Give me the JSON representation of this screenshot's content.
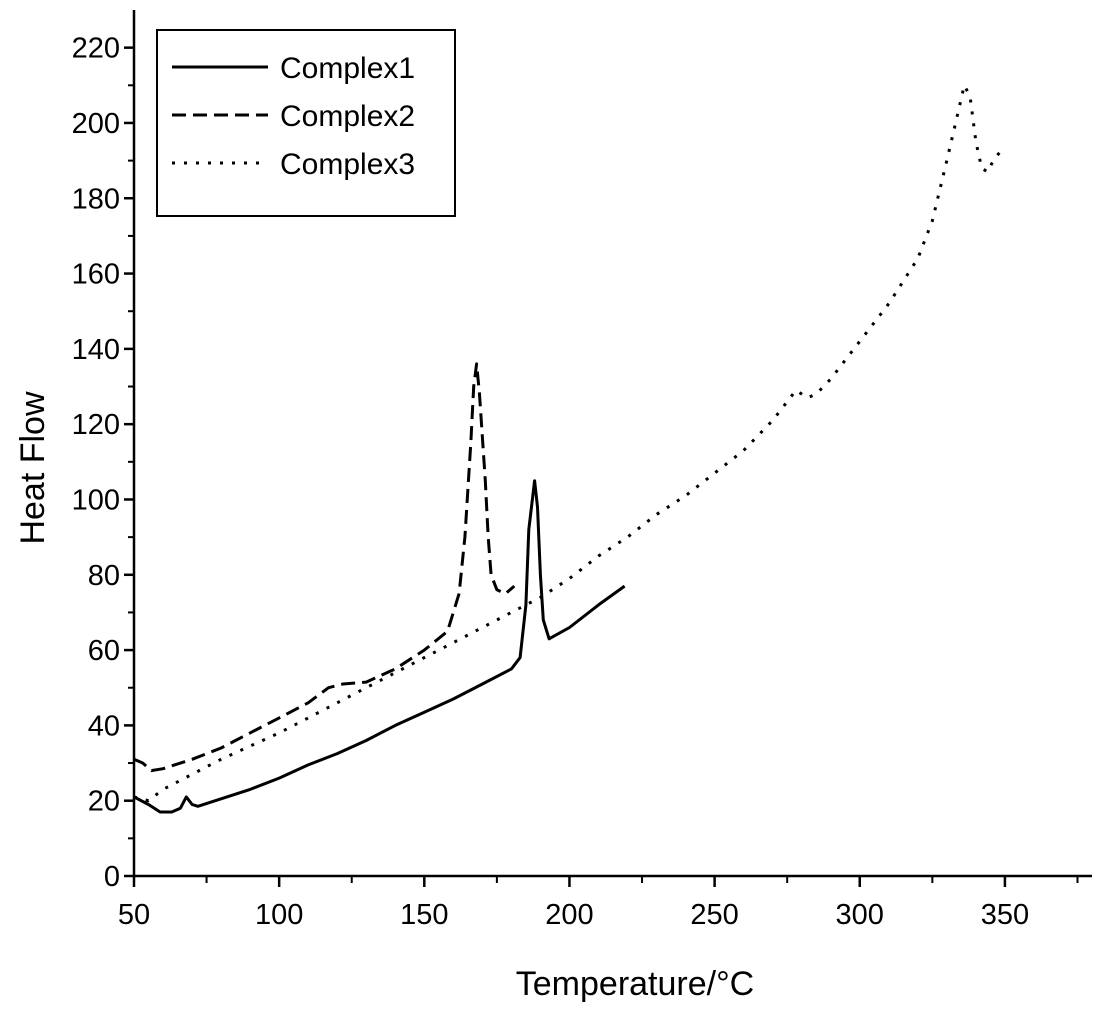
{
  "chart_data": {
    "type": "line",
    "title": "",
    "xlabel": "Temperature/°C",
    "ylabel": "Heat Flow",
    "xlim": [
      50,
      380
    ],
    "ylim": [
      0,
      230
    ],
    "x_ticks": [
      50,
      100,
      150,
      200,
      250,
      300,
      350
    ],
    "y_ticks": [
      0,
      20,
      40,
      60,
      80,
      100,
      120,
      140,
      160,
      180,
      200,
      220
    ],
    "grid": false,
    "legend_position": "top-left",
    "series": [
      {
        "name": "Complex1",
        "line_style": "solid",
        "color": "#000000",
        "points": [
          [
            50,
            21
          ],
          [
            55,
            19
          ],
          [
            59,
            17
          ],
          [
            63,
            17
          ],
          [
            66,
            18
          ],
          [
            68,
            21
          ],
          [
            70,
            19
          ],
          [
            72,
            18.5
          ],
          [
            80,
            20.5
          ],
          [
            90,
            23
          ],
          [
            100,
            26
          ],
          [
            110,
            29.5
          ],
          [
            120,
            32.5
          ],
          [
            130,
            36
          ],
          [
            140,
            40
          ],
          [
            150,
            43.5
          ],
          [
            160,
            47
          ],
          [
            170,
            51
          ],
          [
            180,
            55
          ],
          [
            183,
            58
          ],
          [
            185,
            72
          ],
          [
            186,
            92
          ],
          [
            188,
            105
          ],
          [
            189,
            98
          ],
          [
            190,
            80
          ],
          [
            191,
            68
          ],
          [
            193,
            63
          ],
          [
            200,
            66
          ],
          [
            210,
            72
          ],
          [
            219,
            77
          ]
        ]
      },
      {
        "name": "Complex2",
        "line_style": "dashed",
        "color": "#000000",
        "points": [
          [
            50,
            31
          ],
          [
            53,
            30
          ],
          [
            56,
            28
          ],
          [
            60,
            28.5
          ],
          [
            70,
            31
          ],
          [
            80,
            34
          ],
          [
            90,
            38
          ],
          [
            100,
            42
          ],
          [
            110,
            46
          ],
          [
            117,
            50
          ],
          [
            122,
            51
          ],
          [
            130,
            51.5
          ],
          [
            140,
            55
          ],
          [
            150,
            60
          ],
          [
            158,
            65
          ],
          [
            162,
            75
          ],
          [
            164,
            90
          ],
          [
            166,
            115
          ],
          [
            167,
            130
          ],
          [
            168,
            136
          ],
          [
            169,
            128
          ],
          [
            171,
            105
          ],
          [
            172,
            90
          ],
          [
            173,
            80
          ],
          [
            175,
            76
          ],
          [
            178,
            75
          ],
          [
            181,
            77
          ]
        ]
      },
      {
        "name": "Complex3",
        "line_style": "dotted",
        "color": "#000000",
        "points": [
          [
            50,
            21
          ],
          [
            55,
            20
          ],
          [
            60,
            23
          ],
          [
            70,
            27
          ],
          [
            80,
            31
          ],
          [
            90,
            34.5
          ],
          [
            100,
            38
          ],
          [
            110,
            42
          ],
          [
            120,
            46
          ],
          [
            130,
            50
          ],
          [
            140,
            54
          ],
          [
            150,
            58
          ],
          [
            160,
            62
          ],
          [
            170,
            66
          ],
          [
            180,
            70
          ],
          [
            190,
            74
          ],
          [
            200,
            79
          ],
          [
            210,
            85
          ],
          [
            220,
            90
          ],
          [
            230,
            96
          ],
          [
            240,
            101
          ],
          [
            250,
            107
          ],
          [
            260,
            113
          ],
          [
            270,
            121
          ],
          [
            275,
            126
          ],
          [
            278,
            129
          ],
          [
            282,
            127
          ],
          [
            285,
            128
          ],
          [
            290,
            132
          ],
          [
            300,
            142
          ],
          [
            310,
            152
          ],
          [
            320,
            164
          ],
          [
            325,
            174
          ],
          [
            330,
            190
          ],
          [
            333,
            200
          ],
          [
            336,
            210
          ],
          [
            338,
            207
          ],
          [
            340,
            195
          ],
          [
            342,
            188
          ],
          [
            344,
            187
          ],
          [
            346,
            190
          ],
          [
            349,
            193
          ]
        ]
      }
    ]
  }
}
